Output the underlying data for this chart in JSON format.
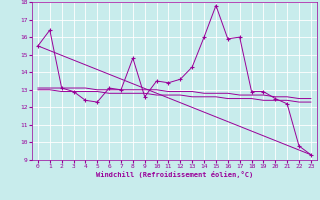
{
  "xlabel": "Windchill (Refroidissement éolien,°C)",
  "background_color": "#c8ecec",
  "line_color": "#990099",
  "grid_color": "#ffffff",
  "xlim": [
    -0.5,
    23.5
  ],
  "ylim": [
    9,
    18
  ],
  "yticks": [
    9,
    10,
    11,
    12,
    13,
    14,
    15,
    16,
    17,
    18
  ],
  "xticks": [
    0,
    1,
    2,
    3,
    4,
    5,
    6,
    7,
    8,
    9,
    10,
    11,
    12,
    13,
    14,
    15,
    16,
    17,
    18,
    19,
    20,
    21,
    22,
    23
  ],
  "x": [
    0,
    1,
    2,
    3,
    4,
    5,
    6,
    7,
    8,
    9,
    10,
    11,
    12,
    13,
    14,
    15,
    16,
    17,
    18,
    19,
    20,
    21,
    22,
    23
  ],
  "line_main_y": [
    15.5,
    16.4,
    13.1,
    12.9,
    12.4,
    12.3,
    13.1,
    13.0,
    14.8,
    12.6,
    13.5,
    13.4,
    13.6,
    14.3,
    16.0,
    17.8,
    15.9,
    16.0,
    12.9,
    12.9,
    12.5,
    12.2,
    9.8,
    9.3
  ],
  "line_flat1_y": [
    13.1,
    13.1,
    13.1,
    13.1,
    13.1,
    13.0,
    13.0,
    13.0,
    13.0,
    13.0,
    13.0,
    12.9,
    12.9,
    12.9,
    12.8,
    12.8,
    12.8,
    12.7,
    12.7,
    12.7,
    12.6,
    12.6,
    12.5,
    12.5
  ],
  "line_flat2_y": [
    13.0,
    13.0,
    12.9,
    12.9,
    12.9,
    12.9,
    12.8,
    12.8,
    12.8,
    12.8,
    12.7,
    12.7,
    12.7,
    12.6,
    12.6,
    12.6,
    12.5,
    12.5,
    12.5,
    12.4,
    12.4,
    12.4,
    12.3,
    12.3
  ],
  "line_diag_start": 15.5,
  "line_diag_end": 9.3
}
